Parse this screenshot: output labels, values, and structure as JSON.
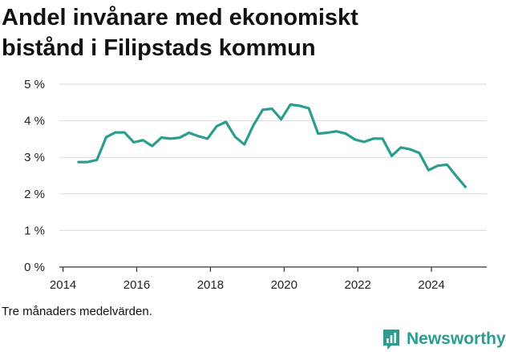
{
  "title_line1": "Andel invånare med ekonomiskt",
  "title_line2": "bistånd i Filipstads kommun",
  "footnote": "Tre månaders medelvärden.",
  "brand": {
    "name": "Newsworthy",
    "icon": "newsworthy-logo-icon",
    "color": "#2a9d8f"
  },
  "chart_data": {
    "type": "line",
    "title": "Andel invånare med ekonomiskt bistånd i Filipstads kommun",
    "xlabel": "",
    "ylabel": "",
    "xlim": [
      2013.9,
      2025.5
    ],
    "ylim": [
      0,
      5
    ],
    "x_ticks": [
      2014,
      2016,
      2018,
      2020,
      2022,
      2024
    ],
    "y_ticks": [
      0,
      1,
      2,
      3,
      4,
      5
    ],
    "y_tick_labels": [
      "0 %",
      "1 %",
      "2 %",
      "3 %",
      "4 %",
      "5 %"
    ],
    "grid": "horizontal",
    "line_color": "#2a9d8f",
    "series": [
      {
        "x": [
          2014.42,
          2014.67,
          2014.92,
          2015.17,
          2015.42,
          2015.67,
          2015.92,
          2016.17,
          2016.42,
          2016.67,
          2016.92,
          2017.17,
          2017.42,
          2017.67,
          2017.92,
          2018.17,
          2018.42,
          2018.67,
          2018.92,
          2019.17,
          2019.42,
          2019.67,
          2019.92,
          2020.17,
          2020.42,
          2020.67,
          2020.92,
          2021.17,
          2021.42,
          2021.67,
          2021.92,
          2022.17,
          2022.42,
          2022.67,
          2022.92,
          2023.17,
          2023.42,
          2023.67,
          2023.92,
          2024.17,
          2024.42,
          2024.67,
          2024.92
        ],
        "values": [
          2.87,
          2.87,
          2.93,
          3.55,
          3.68,
          3.68,
          3.41,
          3.47,
          3.31,
          3.54,
          3.51,
          3.54,
          3.67,
          3.58,
          3.51,
          3.85,
          3.97,
          3.56,
          3.35,
          3.88,
          4.3,
          4.33,
          4.04,
          4.44,
          4.41,
          4.34,
          3.65,
          3.67,
          3.71,
          3.65,
          3.49,
          3.42,
          3.51,
          3.51,
          3.04,
          3.27,
          3.22,
          3.12,
          2.65,
          2.77,
          2.8,
          2.49,
          2.19
        ]
      }
    ]
  }
}
